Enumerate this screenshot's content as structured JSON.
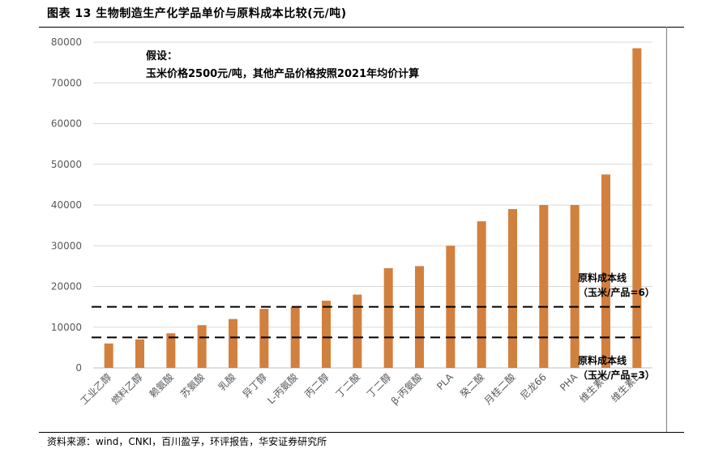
{
  "title": "图表 13 生物制造生产化学品单价与原料成本比较(元/吨)",
  "note": {
    "line1": "假设：",
    "line2": "玉米价格2500元/吨，其他产品价格按照2021年均价计算"
  },
  "source": "资料来源：wind，CNKI，百川盈孚，环评报告，华安证券研究所",
  "reference_lines": {
    "upper": {
      "label_1": "原料成本线",
      "label_2": "（玉米/产品=6）",
      "value": 15000
    },
    "lower": {
      "label_1": "原料成本线",
      "label_2": "（玉米/产品=3）",
      "value": 7500
    }
  },
  "colors": {
    "bar": "#D2803E",
    "grid": "#D9D9D9",
    "axis": "#BFBFBF",
    "tick_text": "#595959",
    "ref_line": "#000000"
  },
  "chart_data": {
    "type": "bar",
    "title": "图表 13 生物制造生产化学品单价与原料成本比较(元/吨)",
    "xlabel": "",
    "ylabel": "",
    "ylim": [
      0,
      80000
    ],
    "yticks": [
      0,
      10000,
      20000,
      30000,
      40000,
      50000,
      60000,
      70000,
      80000
    ],
    "ytick_labels": [
      "0",
      "10000",
      "20000",
      "30000",
      "40000",
      "50000",
      "60000",
      "70000",
      "80000"
    ],
    "grid": true,
    "legend": "none",
    "categories": [
      "工业乙醇",
      "燃料乙醇",
      "赖氨酸",
      "苏氨酸",
      "乳酸",
      "异丁醇",
      "L-丙氨酸",
      "丙二醇",
      "丁二酸",
      "丁二醇",
      "β-丙氨酸",
      "PLA",
      "癸二酸",
      "月桂二酸",
      "尼龙66",
      "PHA",
      "维生素C",
      "维生素E"
    ],
    "values": [
      6000,
      7000,
      8500,
      10500,
      12000,
      14500,
      15000,
      16500,
      18000,
      24500,
      25000,
      30000,
      36000,
      39000,
      40000,
      40000,
      47500,
      78500
    ]
  }
}
